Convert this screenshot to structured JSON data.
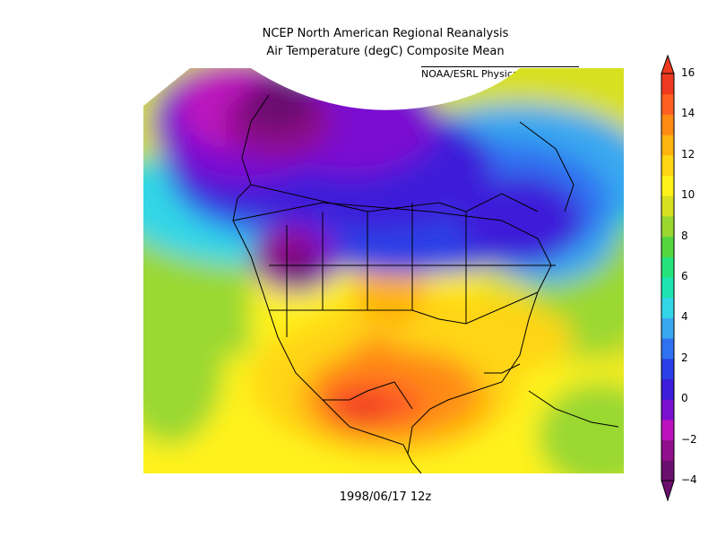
{
  "header": {
    "title_line1": "NCEP North American Regional Reanalysis",
    "title_line2": "Air Temperature (degC) Composite Mean",
    "credit": "NOAA/ESRL Physical Sciences Division"
  },
  "footer": {
    "date": "1998/06/17 12z"
  },
  "colorbar": {
    "min": -4,
    "max": 16,
    "step": 1,
    "tick_labels": [
      "16",
      "14",
      "12",
      "10",
      "8",
      "6",
      "4",
      "2",
      "0",
      "−2",
      "−4"
    ],
    "tick_values": [
      16,
      14,
      12,
      10,
      8,
      6,
      4,
      2,
      0,
      -2,
      -4
    ],
    "colors": [
      "#6b0f6e",
      "#900f8c",
      "#bb12bd",
      "#7a0fd0",
      "#3c1dd9",
      "#2a3fe6",
      "#2f72f0",
      "#39a8f0",
      "#33d6e6",
      "#1de4b0",
      "#25e37a",
      "#55d640",
      "#9ad830",
      "#d8e020",
      "#fff21a",
      "#ffd514",
      "#ffb30f",
      "#ff8a14",
      "#ff6020",
      "#ee3a20"
    ]
  }
}
